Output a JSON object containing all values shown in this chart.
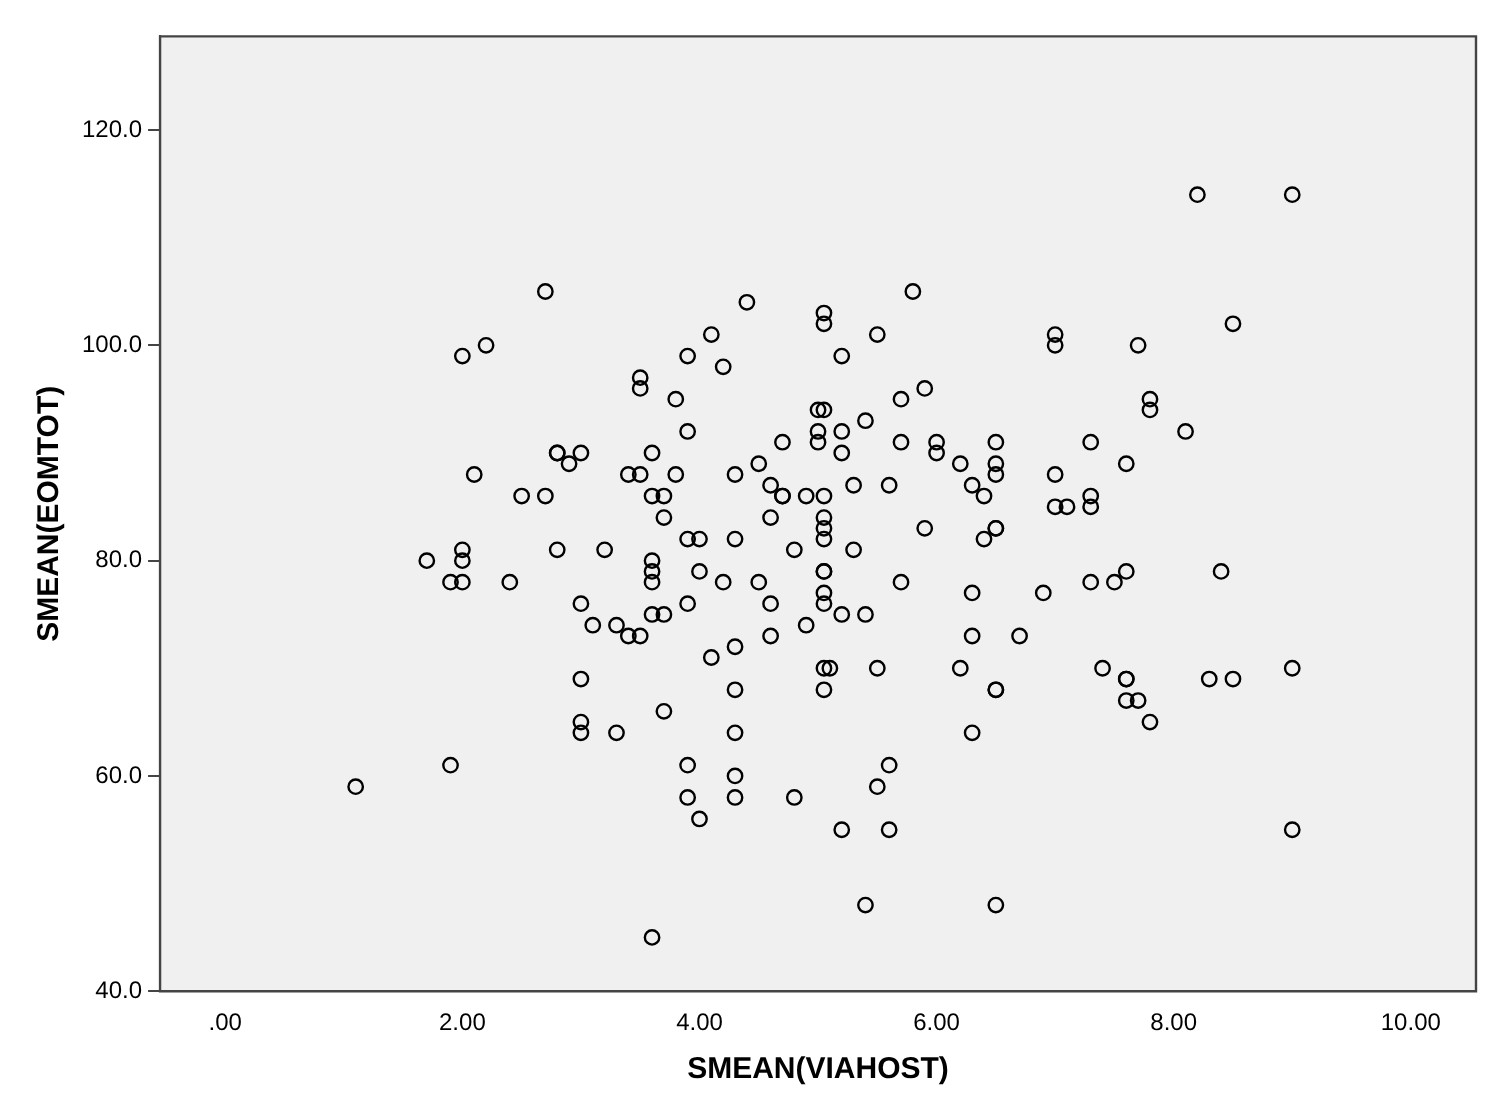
{
  "chart_data": {
    "type": "scatter",
    "xlabel": "SMEAN(VIAHOST)",
    "ylabel": "SMEAN(EOMTOT)",
    "xlim": [
      -0.55,
      10.55
    ],
    "ylim": [
      40,
      128.7
    ],
    "xticks": [
      {
        "value": 0,
        "label": ".00"
      },
      {
        "value": 2,
        "label": "2.00"
      },
      {
        "value": 4,
        "label": "4.00"
      },
      {
        "value": 6,
        "label": "6.00"
      },
      {
        "value": 8,
        "label": "8.00"
      },
      {
        "value": 10,
        "label": "10.00"
      }
    ],
    "yticks": [
      {
        "value": 40,
        "label": "40.0"
      },
      {
        "value": 60,
        "label": "60.0"
      },
      {
        "value": 80,
        "label": "80.0"
      },
      {
        "value": 100,
        "label": "100.0"
      },
      {
        "value": 120,
        "label": "120.0"
      }
    ],
    "grid": false,
    "legend": false,
    "marker": "circle",
    "series": [
      {
        "color": "#000000",
        "x": [
          1.1,
          1.9,
          1.7,
          1.9,
          2.0,
          2.0,
          2.0,
          2.0,
          2.2,
          2.1,
          2.4,
          2.5,
          2.7,
          2.7,
          2.8,
          2.8,
          2.9,
          3.0,
          2.8,
          3.0,
          3.1,
          3.0,
          3.0,
          3.0,
          3.2,
          3.3,
          3.3,
          3.4,
          3.5,
          3.4,
          3.5,
          3.5,
          3.5,
          3.6,
          3.6,
          3.7,
          3.6,
          3.6,
          3.6,
          3.6,
          3.7,
          3.7,
          3.7,
          3.8,
          3.8,
          3.9,
          3.9,
          3.9,
          4.0,
          3.9,
          3.6,
          3.9,
          3.9,
          4.0,
          4.0,
          4.1,
          4.1,
          4.2,
          4.2,
          4.3,
          4.3,
          4.3,
          4.3,
          4.3,
          4.3,
          4.3,
          4.4,
          4.5,
          4.5,
          4.6,
          4.6,
          4.6,
          4.6,
          4.7,
          4.7,
          4.7,
          4.8,
          4.8,
          4.9,
          4.9,
          5.0,
          5.05,
          5.0,
          5.0,
          5.05,
          5.05,
          5.05,
          5.05,
          5.05,
          5.05,
          5.05,
          5.05,
          5.05,
          5.05,
          5.05,
          5.05,
          5.1,
          5.2,
          5.2,
          5.2,
          5.2,
          5.2,
          5.3,
          5.3,
          5.4,
          5.4,
          5.4,
          5.5,
          5.5,
          5.5,
          5.6,
          5.6,
          5.6,
          5.7,
          5.7,
          5.7,
          5.8,
          5.9,
          5.9,
          6.0,
          6.0,
          6.2,
          6.2,
          6.3,
          6.3,
          6.3,
          6.3,
          6.4,
          6.4,
          6.5,
          6.5,
          6.5,
          6.5,
          6.5,
          6.5,
          6.5,
          6.5,
          6.7,
          6.9,
          7.0,
          7.0,
          7.0,
          7.0,
          7.1,
          7.3,
          7.3,
          7.3,
          7.3,
          7.4,
          7.5,
          7.6,
          7.6,
          7.6,
          7.6,
          7.6,
          7.7,
          7.7,
          7.8,
          7.8,
          7.8,
          8.1,
          8.2,
          8.3,
          8.4,
          8.5,
          8.5,
          9.0,
          9.0,
          9.0
        ],
        "values": [
          59,
          61,
          80,
          78,
          78,
          80,
          81,
          99,
          100,
          88,
          78,
          86,
          86,
          105,
          90,
          90,
          89,
          90,
          81,
          76,
          74,
          69,
          65,
          64,
          81,
          74,
          64,
          88,
          88,
          73,
          73,
          97,
          96,
          90,
          86,
          86,
          80,
          79,
          78,
          75,
          75,
          84,
          66,
          95,
          88,
          99,
          92,
          82,
          82,
          76,
          45,
          61,
          58,
          56,
          79,
          101,
          71,
          98,
          78,
          88,
          82,
          72,
          68,
          64,
          60,
          58,
          104,
          89,
          78,
          87,
          84,
          76,
          73,
          91,
          86,
          86,
          81,
          58,
          86,
          74,
          94,
          94,
          92,
          91,
          103,
          102,
          86,
          84,
          83,
          82,
          79,
          79,
          77,
          76,
          70,
          68,
          70,
          99,
          92,
          90,
          75,
          55,
          87,
          81,
          93,
          75,
          48,
          101,
          70,
          59,
          87,
          61,
          55,
          95,
          91,
          78,
          105,
          96,
          83,
          91,
          90,
          89,
          70,
          87,
          77,
          73,
          64,
          82,
          86,
          91,
          89,
          88,
          83,
          83,
          68,
          68,
          48,
          73,
          77,
          101,
          100,
          88,
          85,
          85,
          91,
          86,
          85,
          78,
          70,
          78,
          89,
          79,
          69,
          69,
          67,
          67,
          100,
          95,
          94,
          65,
          92,
          114,
          69,
          79,
          102,
          69,
          114,
          70,
          55
        ]
      }
    ]
  }
}
